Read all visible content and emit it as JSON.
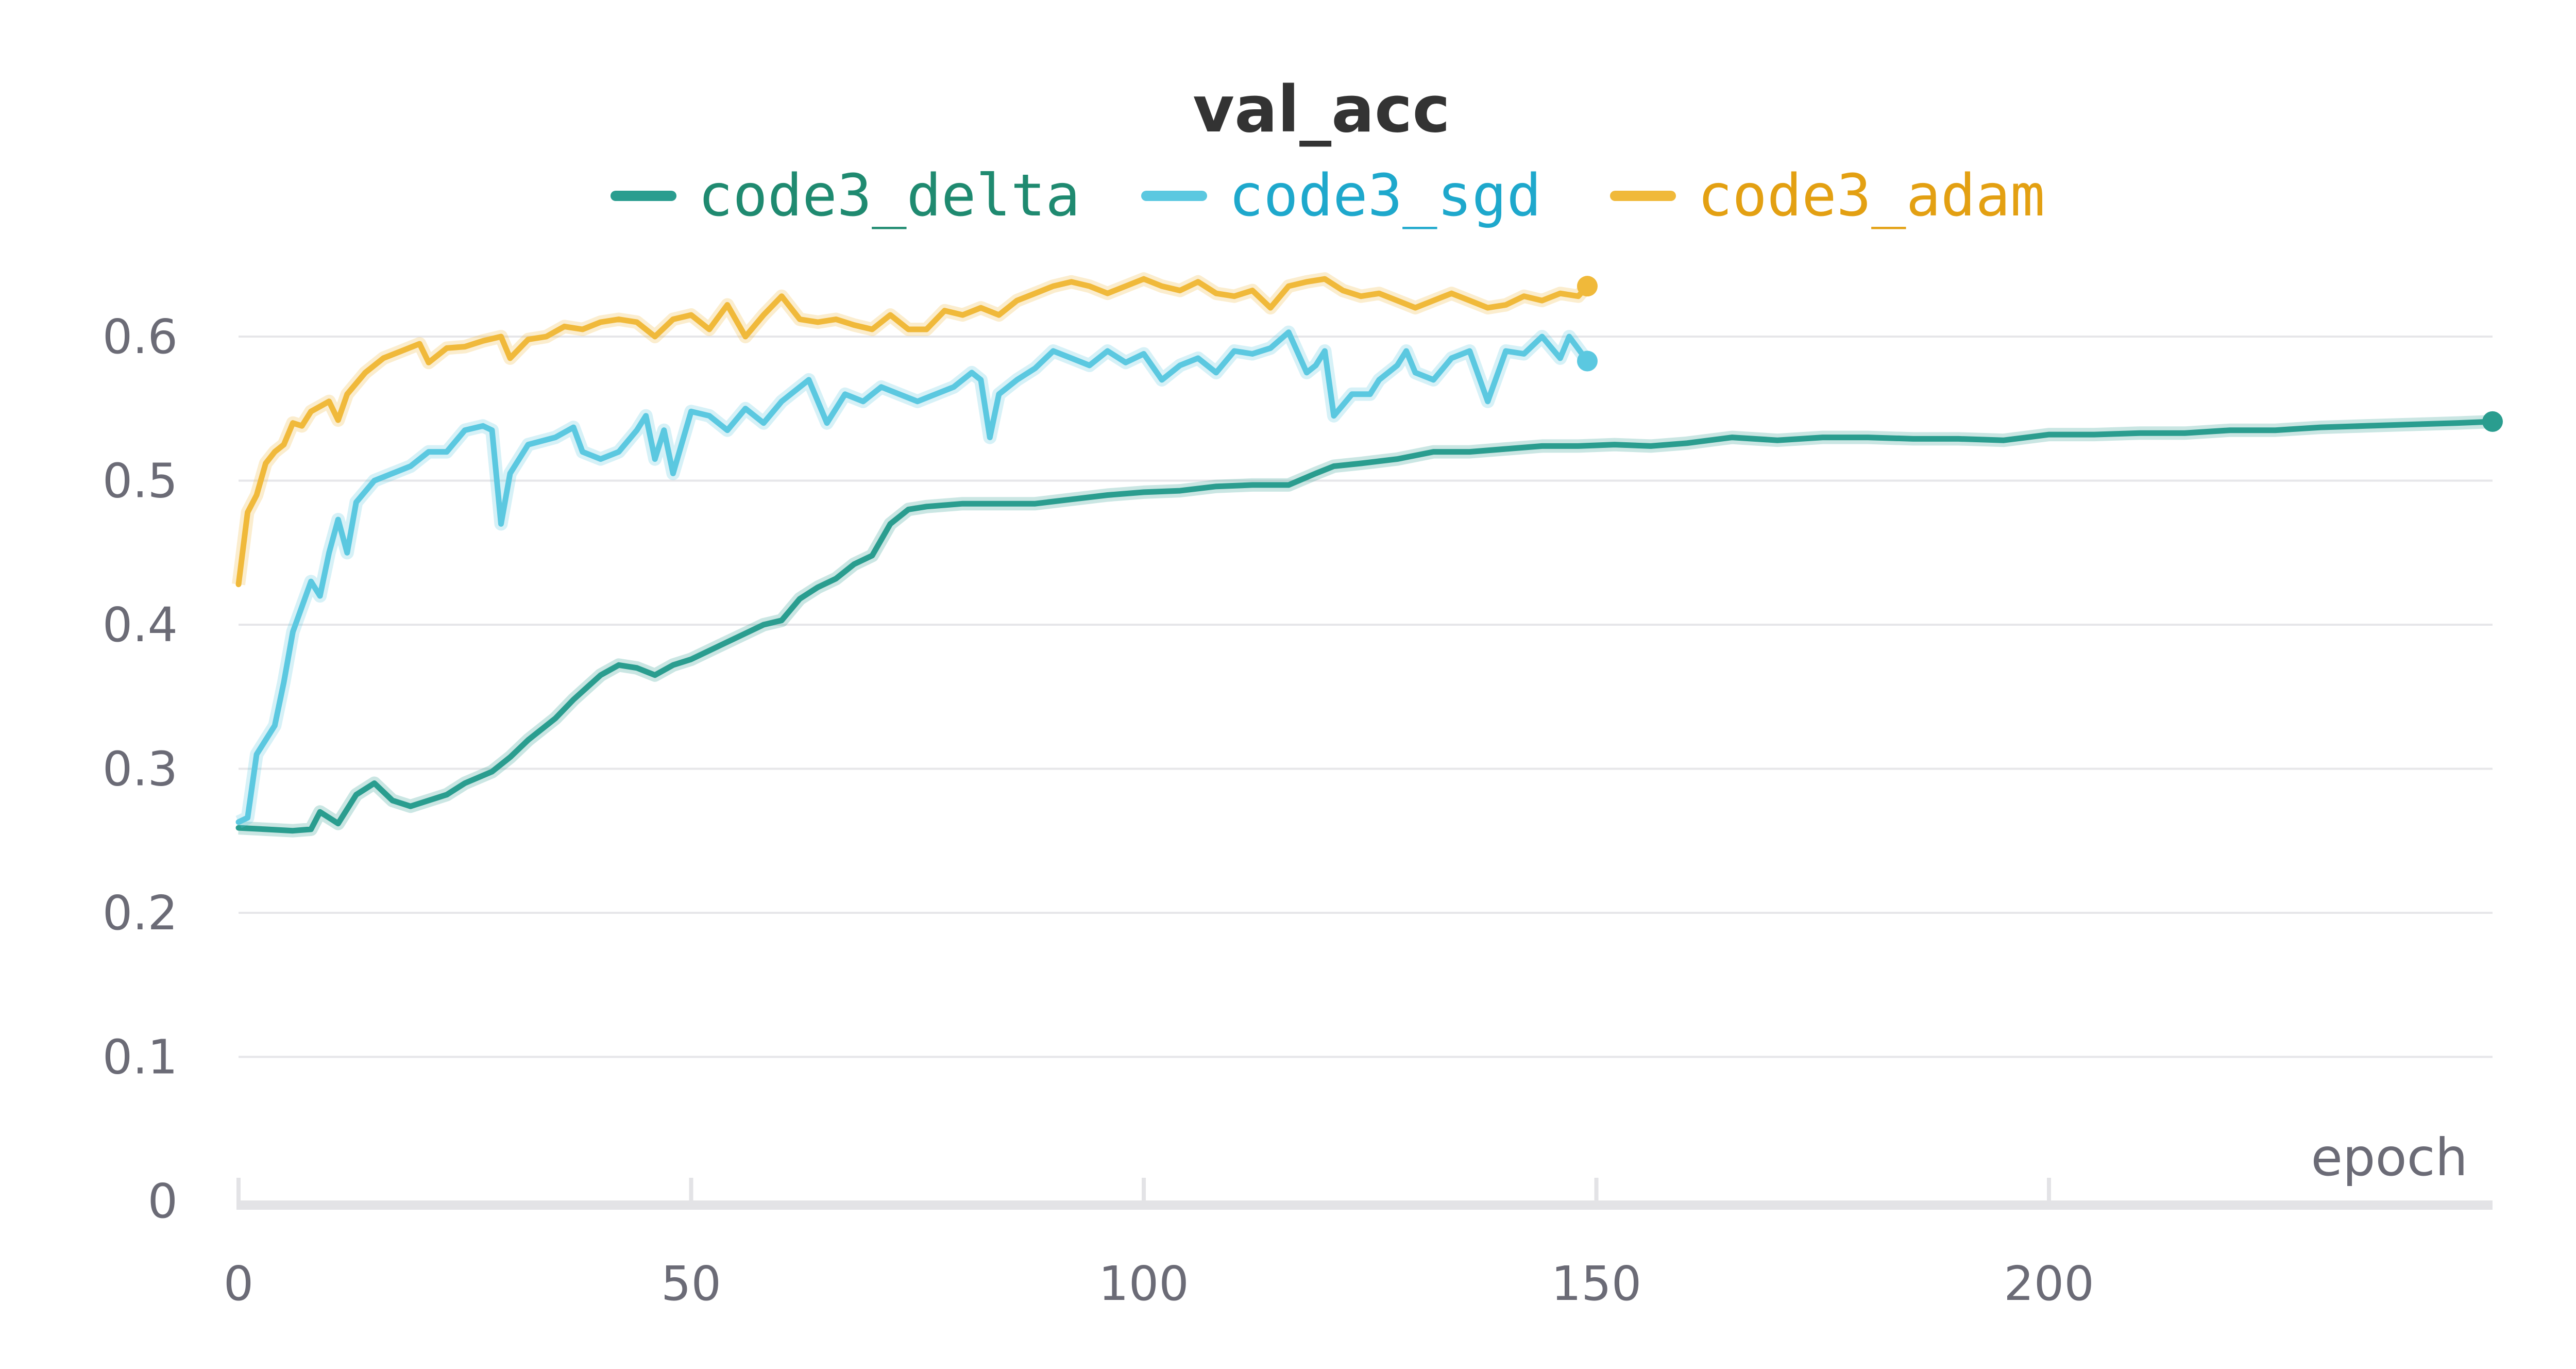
{
  "chart_data": {
    "type": "line",
    "title": "val_acc",
    "xlabel": "epoch",
    "ylabel": "",
    "xlim": [
      0,
      249
    ],
    "ylim": [
      0,
      0.65
    ],
    "x_ticks": [
      0,
      50,
      100,
      150,
      200
    ],
    "y_ticks": [
      0,
      0.1,
      0.2,
      0.3,
      0.4,
      0.5,
      0.6
    ],
    "x_tick_labels": [
      "0",
      "50",
      "100",
      "150",
      "200"
    ],
    "y_tick_labels": [
      "0",
      "0.1",
      "0.2",
      "0.3",
      "0.4",
      "0.5",
      "0.6"
    ],
    "grid": "horizontal",
    "legend_position": "top-center",
    "series": [
      {
        "name": "code3_delta",
        "color": "#2a9d8f",
        "legend_color": "#1f8a70",
        "points": [
          [
            0,
            0.259
          ],
          [
            3,
            0.258
          ],
          [
            6,
            0.257
          ],
          [
            8,
            0.258
          ],
          [
            9,
            0.27
          ],
          [
            11,
            0.262
          ],
          [
            13,
            0.282
          ],
          [
            15,
            0.29
          ],
          [
            17,
            0.278
          ],
          [
            19,
            0.274
          ],
          [
            21,
            0.278
          ],
          [
            23,
            0.282
          ],
          [
            25,
            0.29
          ],
          [
            28,
            0.298
          ],
          [
            30,
            0.308
          ],
          [
            32,
            0.32
          ],
          [
            35,
            0.335
          ],
          [
            37,
            0.348
          ],
          [
            40,
            0.365
          ],
          [
            42,
            0.372
          ],
          [
            44,
            0.37
          ],
          [
            46,
            0.365
          ],
          [
            48,
            0.372
          ],
          [
            50,
            0.376
          ],
          [
            53,
            0.385
          ],
          [
            56,
            0.394
          ],
          [
            58,
            0.4
          ],
          [
            60,
            0.403
          ],
          [
            62,
            0.418
          ],
          [
            64,
            0.426
          ],
          [
            66,
            0.432
          ],
          [
            68,
            0.442
          ],
          [
            70,
            0.448
          ],
          [
            72,
            0.47
          ],
          [
            74,
            0.48
          ],
          [
            76,
            0.482
          ],
          [
            80,
            0.484
          ],
          [
            84,
            0.484
          ],
          [
            88,
            0.484
          ],
          [
            92,
            0.487
          ],
          [
            96,
            0.49
          ],
          [
            100,
            0.492
          ],
          [
            104,
            0.493
          ],
          [
            108,
            0.496
          ],
          [
            112,
            0.497
          ],
          [
            116,
            0.497
          ],
          [
            119,
            0.505
          ],
          [
            121,
            0.51
          ],
          [
            124,
            0.512
          ],
          [
            128,
            0.515
          ],
          [
            132,
            0.52
          ],
          [
            136,
            0.52
          ],
          [
            140,
            0.522
          ],
          [
            144,
            0.524
          ],
          [
            148,
            0.524
          ],
          [
            152,
            0.525
          ],
          [
            156,
            0.524
          ],
          [
            160,
            0.526
          ],
          [
            165,
            0.53
          ],
          [
            170,
            0.528
          ],
          [
            175,
            0.53
          ],
          [
            180,
            0.53
          ],
          [
            185,
            0.529
          ],
          [
            190,
            0.529
          ],
          [
            195,
            0.528
          ],
          [
            200,
            0.532
          ],
          [
            205,
            0.532
          ],
          [
            210,
            0.533
          ],
          [
            215,
            0.533
          ],
          [
            220,
            0.535
          ],
          [
            225,
            0.535
          ],
          [
            230,
            0.537
          ],
          [
            235,
            0.538
          ],
          [
            240,
            0.539
          ],
          [
            245,
            0.54
          ],
          [
            249,
            0.541
          ]
        ]
      },
      {
        "name": "code3_sgd",
        "color": "#5bc8e0",
        "legend_color": "#1ea8cc",
        "points": [
          [
            0,
            0.263
          ],
          [
            1,
            0.266
          ],
          [
            2,
            0.31
          ],
          [
            4,
            0.33
          ],
          [
            5,
            0.36
          ],
          [
            6,
            0.395
          ],
          [
            8,
            0.43
          ],
          [
            9,
            0.42
          ],
          [
            10,
            0.45
          ],
          [
            11,
            0.473
          ],
          [
            12,
            0.45
          ],
          [
            13,
            0.485
          ],
          [
            15,
            0.5
          ],
          [
            17,
            0.505
          ],
          [
            19,
            0.51
          ],
          [
            21,
            0.52
          ],
          [
            23,
            0.52
          ],
          [
            25,
            0.535
          ],
          [
            27,
            0.538
          ],
          [
            28,
            0.535
          ],
          [
            29,
            0.47
          ],
          [
            30,
            0.505
          ],
          [
            32,
            0.525
          ],
          [
            35,
            0.53
          ],
          [
            37,
            0.537
          ],
          [
            38,
            0.52
          ],
          [
            40,
            0.515
          ],
          [
            42,
            0.52
          ],
          [
            44,
            0.535
          ],
          [
            45,
            0.545
          ],
          [
            46,
            0.515
          ],
          [
            47,
            0.535
          ],
          [
            48,
            0.505
          ],
          [
            50,
            0.548
          ],
          [
            52,
            0.545
          ],
          [
            54,
            0.535
          ],
          [
            56,
            0.55
          ],
          [
            58,
            0.54
          ],
          [
            60,
            0.555
          ],
          [
            63,
            0.57
          ],
          [
            65,
            0.54
          ],
          [
            67,
            0.56
          ],
          [
            69,
            0.555
          ],
          [
            71,
            0.565
          ],
          [
            73,
            0.56
          ],
          [
            75,
            0.555
          ],
          [
            77,
            0.56
          ],
          [
            79,
            0.565
          ],
          [
            81,
            0.575
          ],
          [
            82,
            0.57
          ],
          [
            83,
            0.53
          ],
          [
            84,
            0.56
          ],
          [
            86,
            0.57
          ],
          [
            88,
            0.578
          ],
          [
            90,
            0.59
          ],
          [
            92,
            0.585
          ],
          [
            94,
            0.58
          ],
          [
            96,
            0.59
          ],
          [
            98,
            0.582
          ],
          [
            100,
            0.588
          ],
          [
            102,
            0.57
          ],
          [
            104,
            0.58
          ],
          [
            106,
            0.585
          ],
          [
            108,
            0.575
          ],
          [
            110,
            0.59
          ],
          [
            112,
            0.588
          ],
          [
            114,
            0.592
          ],
          [
            116,
            0.603
          ],
          [
            118,
            0.575
          ],
          [
            119,
            0.58
          ],
          [
            120,
            0.59
          ],
          [
            121,
            0.545
          ],
          [
            123,
            0.56
          ],
          [
            125,
            0.56
          ],
          [
            126,
            0.57
          ],
          [
            128,
            0.58
          ],
          [
            129,
            0.59
          ],
          [
            130,
            0.575
          ],
          [
            132,
            0.57
          ],
          [
            134,
            0.585
          ],
          [
            136,
            0.59
          ],
          [
            138,
            0.555
          ],
          [
            140,
            0.59
          ],
          [
            142,
            0.588
          ],
          [
            144,
            0.6
          ],
          [
            146,
            0.585
          ],
          [
            147,
            0.6
          ],
          [
            149,
            0.583
          ]
        ]
      },
      {
        "name": "code3_adam",
        "color": "#f0b93a",
        "legend_color": "#e3a012",
        "points": [
          [
            0,
            0.428
          ],
          [
            1,
            0.478
          ],
          [
            2,
            0.49
          ],
          [
            3,
            0.512
          ],
          [
            4,
            0.52
          ],
          [
            5,
            0.525
          ],
          [
            6,
            0.54
          ],
          [
            7,
            0.538
          ],
          [
            8,
            0.548
          ],
          [
            10,
            0.555
          ],
          [
            11,
            0.542
          ],
          [
            12,
            0.56
          ],
          [
            14,
            0.575
          ],
          [
            16,
            0.585
          ],
          [
            18,
            0.59
          ],
          [
            20,
            0.595
          ],
          [
            21,
            0.582
          ],
          [
            23,
            0.592
          ],
          [
            25,
            0.593
          ],
          [
            27,
            0.597
          ],
          [
            29,
            0.6
          ],
          [
            30,
            0.585
          ],
          [
            32,
            0.598
          ],
          [
            34,
            0.6
          ],
          [
            36,
            0.607
          ],
          [
            38,
            0.605
          ],
          [
            40,
            0.61
          ],
          [
            42,
            0.612
          ],
          [
            44,
            0.61
          ],
          [
            46,
            0.6
          ],
          [
            48,
            0.612
          ],
          [
            50,
            0.615
          ],
          [
            52,
            0.605
          ],
          [
            54,
            0.622
          ],
          [
            56,
            0.6
          ],
          [
            58,
            0.615
          ],
          [
            60,
            0.628
          ],
          [
            62,
            0.612
          ],
          [
            64,
            0.61
          ],
          [
            66,
            0.612
          ],
          [
            68,
            0.608
          ],
          [
            70,
            0.605
          ],
          [
            72,
            0.615
          ],
          [
            74,
            0.605
          ],
          [
            76,
            0.605
          ],
          [
            78,
            0.618
          ],
          [
            80,
            0.615
          ],
          [
            82,
            0.62
          ],
          [
            84,
            0.615
          ],
          [
            86,
            0.625
          ],
          [
            88,
            0.63
          ],
          [
            90,
            0.635
          ],
          [
            92,
            0.638
          ],
          [
            94,
            0.635
          ],
          [
            96,
            0.63
          ],
          [
            98,
            0.635
          ],
          [
            100,
            0.64
          ],
          [
            102,
            0.635
          ],
          [
            104,
            0.632
          ],
          [
            106,
            0.638
          ],
          [
            108,
            0.63
          ],
          [
            110,
            0.628
          ],
          [
            112,
            0.632
          ],
          [
            114,
            0.62
          ],
          [
            116,
            0.635
          ],
          [
            118,
            0.638
          ],
          [
            120,
            0.64
          ],
          [
            122,
            0.632
          ],
          [
            124,
            0.628
          ],
          [
            126,
            0.63
          ],
          [
            128,
            0.625
          ],
          [
            130,
            0.62
          ],
          [
            132,
            0.625
          ],
          [
            134,
            0.63
          ],
          [
            136,
            0.625
          ],
          [
            138,
            0.62
          ],
          [
            140,
            0.622
          ],
          [
            142,
            0.628
          ],
          [
            144,
            0.625
          ],
          [
            146,
            0.63
          ],
          [
            148,
            0.628
          ],
          [
            149,
            0.635
          ]
        ]
      }
    ]
  }
}
